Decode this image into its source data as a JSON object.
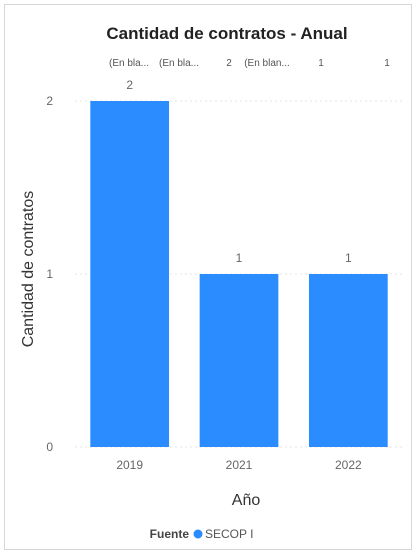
{
  "chart_data": {
    "type": "bar",
    "title": "Cantidad de contratos - Anual",
    "xlabel": "Año",
    "ylabel": "Cantidad de contratos",
    "categories": [
      "2019",
      "2021",
      "2022"
    ],
    "series": [
      {
        "name": "SECOP I",
        "values": [
          2,
          1,
          1
        ]
      }
    ],
    "data_labels": [
      "2",
      "1",
      "1"
    ],
    "ylim": [
      0,
      2
    ],
    "yticks": [
      0,
      1,
      2
    ],
    "top_labels": [
      "(En bla...",
      "(En bla...",
      "2",
      "(En blan...",
      "1",
      "1"
    ],
    "grid": true,
    "bar_color": "#2b8cff",
    "legend": {
      "title": "Fuente",
      "placement": "bottom-center",
      "items": [
        {
          "label": "SECOP I",
          "color": "#2b8cff"
        }
      ]
    }
  }
}
